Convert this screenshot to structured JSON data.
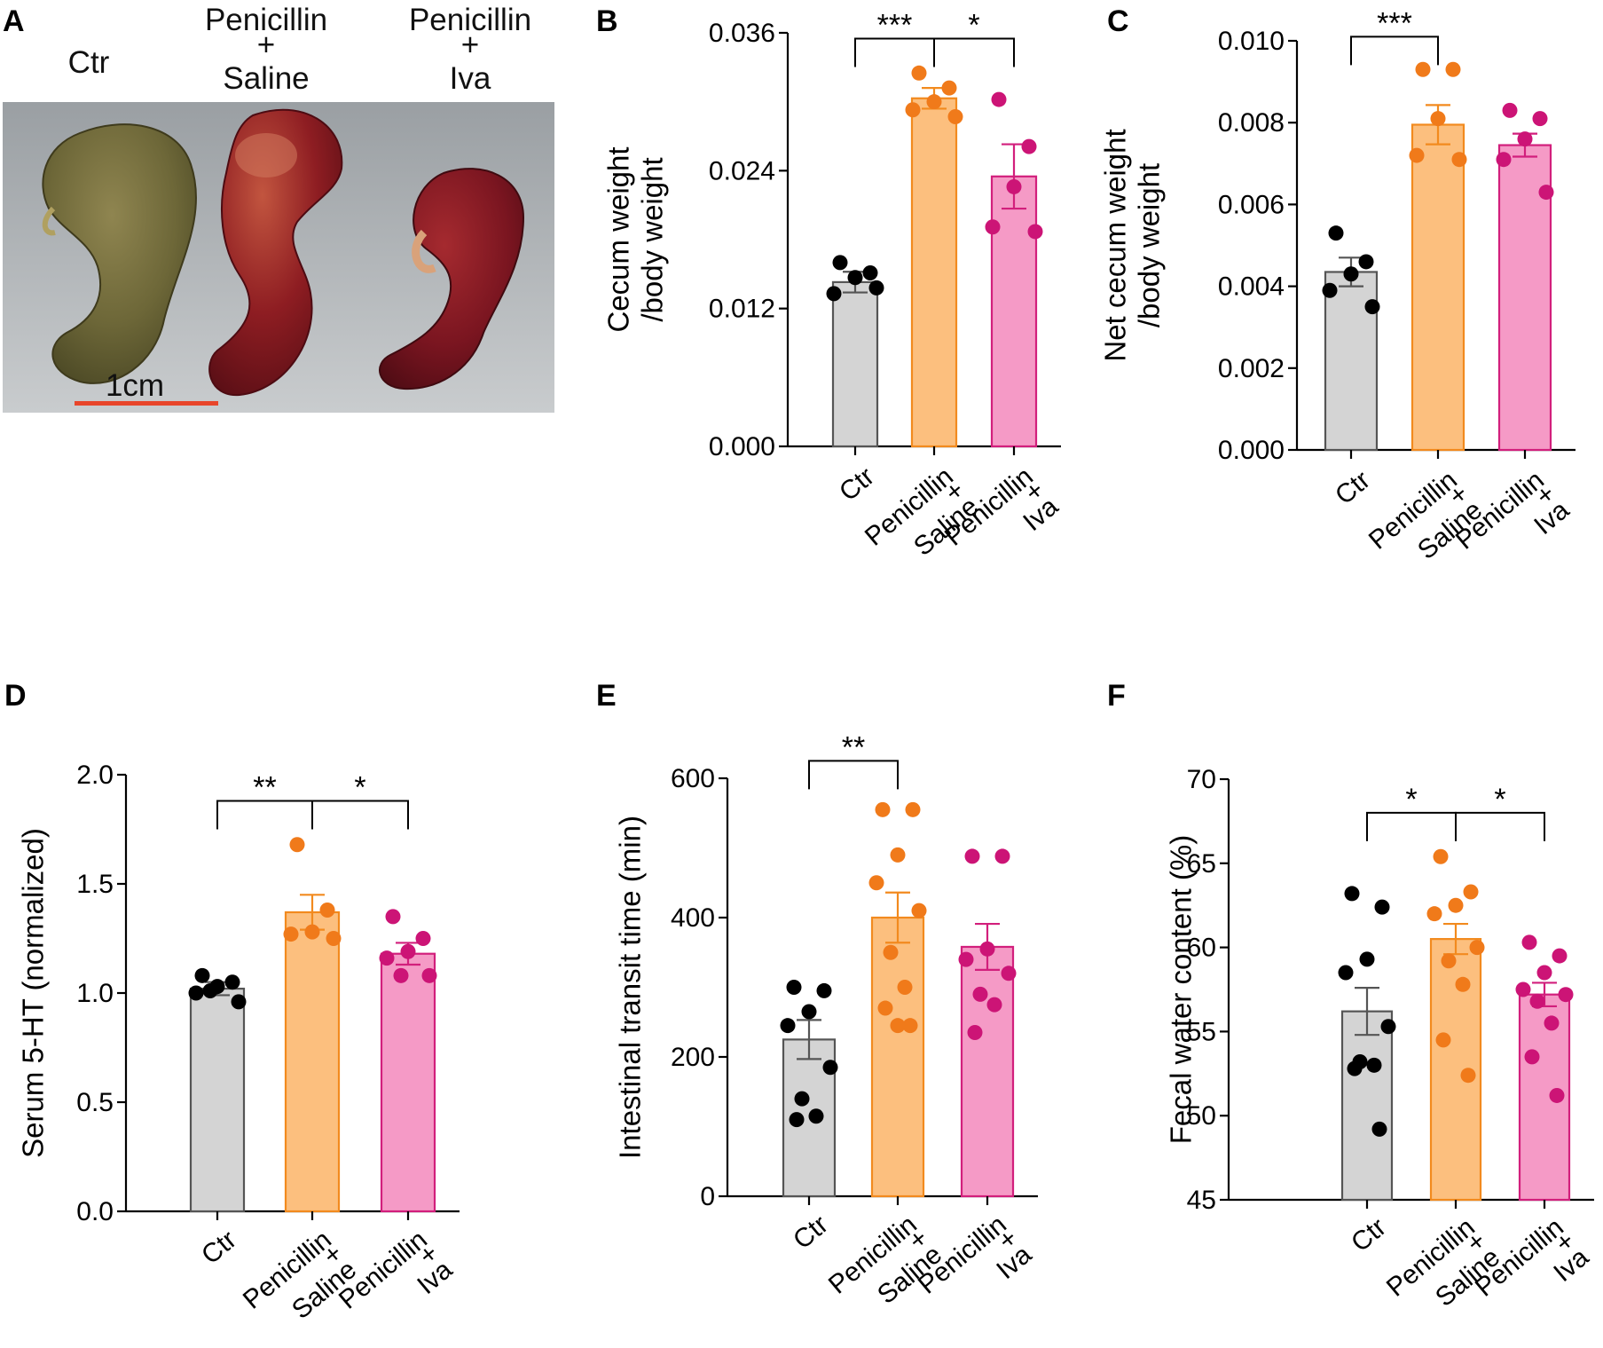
{
  "figure": {
    "photo": {
      "letter": "A",
      "group_labels": [
        [
          "Ctr"
        ],
        [
          "Penicillin",
          "+",
          "Saline"
        ],
        [
          "Penicillin",
          "+",
          "Iva"
        ]
      ],
      "scale_bar": "1cm"
    }
  },
  "colors": {
    "Ctr": {
      "fill": "#d4d4d4",
      "stroke": "#555555",
      "dot": "#000000"
    },
    "Sal": {
      "fill": "#fcbf7e",
      "stroke": "#f28a1e",
      "dot": "#f07a1a"
    },
    "Iva": {
      "fill": "#f59ac6",
      "stroke": "#d21f7c",
      "dot": "#cc1476"
    },
    "scale_bar": "#e8452a"
  },
  "chart_data": [
    {
      "panel": "B",
      "type": "bar",
      "ylabel": [
        "Cecum weight",
        "/body weight"
      ],
      "ylim": [
        0,
        0.036
      ],
      "ticks": [
        "0.000",
        "0.012",
        "0.024",
        "0.036"
      ],
      "categories": [
        [
          "Ctr"
        ],
        [
          "Penicillin",
          "+",
          "Saline"
        ],
        [
          "Penicillin",
          "+",
          "Iva"
        ]
      ],
      "groups": [
        "Ctr",
        "Sal",
        "Iva"
      ],
      "means": [
        0.0143,
        0.0303,
        0.0235
      ],
      "sem": [
        0.0009,
        0.0009,
        0.0028
      ],
      "points": [
        [
          0.016,
          0.0151,
          0.0147,
          0.0133,
          0.0138
        ],
        [
          0.0325,
          0.0312,
          0.03,
          0.0293,
          0.0287
        ],
        [
          0.0302,
          0.0261,
          0.0226,
          0.0191,
          0.0187
        ]
      ],
      "significance": [
        {
          "from": 0,
          "to": 1,
          "label": "***",
          "level": 0.0355
        },
        {
          "from": 1,
          "to": 2,
          "label": "*",
          "level": 0.0355
        }
      ]
    },
    {
      "panel": "C",
      "type": "bar",
      "ylabel": [
        "Net cecum weight",
        "/body weight"
      ],
      "ylim": [
        0,
        0.01
      ],
      "ticks": [
        "0.000",
        "0.002",
        "0.004",
        "0.006",
        "0.008",
        "0.010"
      ],
      "categories": [
        [
          "Ctr"
        ],
        [
          "Penicillin",
          "+",
          "Saline"
        ],
        [
          "Penicillin",
          "+",
          "Iva"
        ]
      ],
      "groups": [
        "Ctr",
        "Sal",
        "Iva"
      ],
      "means": [
        0.00435,
        0.00795,
        0.00745
      ],
      "sem": [
        0.00035,
        0.00048,
        0.00028
      ],
      "points": [
        [
          0.0053,
          0.0046,
          0.0043,
          0.0039,
          0.0035
        ],
        [
          0.0093,
          0.0093,
          0.0081,
          0.0072,
          0.0071
        ],
        [
          0.0083,
          0.0081,
          0.0076,
          0.0071,
          0.0063
        ]
      ],
      "significance": [
        {
          "from": 0,
          "to": 1,
          "label": "***",
          "level": 0.0101
        }
      ]
    },
    {
      "panel": "D",
      "type": "bar",
      "ylabel": [
        "Serum 5-HT (normalized)"
      ],
      "ylim": [
        0,
        2.0
      ],
      "ticks": [
        "0.0",
        "0.5",
        "1.0",
        "1.5",
        "2.0"
      ],
      "categories": [
        [
          "Ctr"
        ],
        [
          "Penicillin",
          "+",
          "Saline"
        ],
        [
          "Penicillin",
          "+",
          "Iva"
        ]
      ],
      "groups": [
        "Ctr",
        "Sal",
        "Iva"
      ],
      "means": [
        1.02,
        1.37,
        1.18
      ],
      "sem": [
        0.03,
        0.08,
        0.05
      ],
      "points": [
        [
          1.08,
          1.05,
          1.03,
          1.0,
          0.96,
          1.01
        ],
        [
          1.68,
          1.38,
          1.28,
          1.27,
          1.25
        ],
        [
          1.35,
          1.25,
          1.19,
          1.16,
          1.08,
          1.08
        ]
      ],
      "significance": [
        {
          "from": 0,
          "to": 1,
          "label": "**",
          "level": 1.88
        },
        {
          "from": 1,
          "to": 2,
          "label": "*",
          "level": 1.88
        }
      ]
    },
    {
      "panel": "E",
      "type": "bar",
      "ylabel": [
        "Intestinal transit time (min)"
      ],
      "ylim": [
        0,
        600
      ],
      "ticks": [
        "0",
        "200",
        "400",
        "600"
      ],
      "categories": [
        [
          "Ctr"
        ],
        [
          "Penicillin",
          "+",
          "Saline"
        ],
        [
          "Penicillin",
          "+",
          "Iva"
        ]
      ],
      "groups": [
        "Ctr",
        "Sal",
        "Iva"
      ],
      "means": [
        225,
        400,
        358
      ],
      "sem": [
        28,
        36,
        33
      ],
      "points": [
        [
          300,
          295,
          265,
          245,
          185,
          140,
          115,
          110
        ],
        [
          555,
          555,
          490,
          450,
          410,
          350,
          300,
          270,
          245,
          245
        ],
        [
          488,
          488,
          355,
          340,
          320,
          290,
          275,
          235
        ]
      ],
      "significance": [
        {
          "from": 0,
          "to": 1,
          "label": "**",
          "level": 625
        }
      ]
    },
    {
      "panel": "F",
      "type": "bar",
      "ylabel": [
        "Fecal water content (%)"
      ],
      "ylim": [
        45,
        70
      ],
      "ticks": [
        "45",
        "50",
        "55",
        "60",
        "65",
        "70"
      ],
      "categories": [
        [
          "Ctr"
        ],
        [
          "Penicillin",
          "+",
          "Saline"
        ],
        [
          "Penicillin",
          "+",
          "Iva"
        ]
      ],
      "groups": [
        "Ctr",
        "Sal",
        "Iva"
      ],
      "means": [
        56.2,
        60.5,
        57.2
      ],
      "sem": [
        1.4,
        0.9,
        0.7
      ],
      "points": [
        [
          63.2,
          62.4,
          59.3,
          58.5,
          55.3,
          53.2,
          53.0,
          52.8,
          49.2
        ],
        [
          65.4,
          63.3,
          62.5,
          62.0,
          60.0,
          59.2,
          57.8,
          54.5,
          52.4
        ],
        [
          60.3,
          59.5,
          58.5,
          57.5,
          57.2,
          56.8,
          55.5,
          53.5,
          51.2
        ]
      ],
      "significance": [
        {
          "from": 0,
          "to": 1,
          "label": "*",
          "level": 68.0
        },
        {
          "from": 1,
          "to": 2,
          "label": "*",
          "level": 68.0
        }
      ]
    }
  ]
}
